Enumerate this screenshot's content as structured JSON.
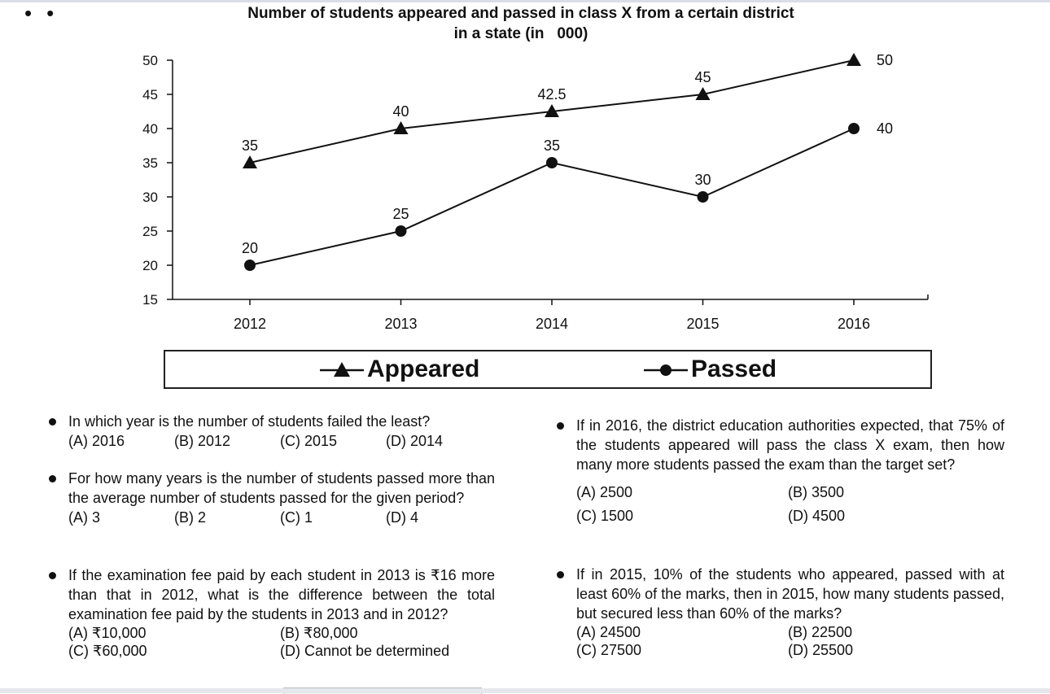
{
  "chart_data": {
    "type": "line",
    "title_line1": "Number of students appeared and passed in class X from a certain district",
    "title_line2": "in a state (in   000)",
    "x": [
      "2012",
      "2013",
      "2014",
      "2015",
      "2016"
    ],
    "ylim": [
      15,
      50
    ],
    "yticks": [
      "15",
      "20",
      "25",
      "30",
      "35",
      "40",
      "45",
      "50"
    ],
    "series": [
      {
        "name": "Appeared",
        "marker": "triangle",
        "values": [
          35,
          40,
          42.5,
          45,
          50
        ],
        "labels": [
          "35",
          "40",
          "42.5",
          "45",
          "50"
        ]
      },
      {
        "name": "Passed",
        "marker": "circle",
        "values": [
          20,
          25,
          35,
          30,
          40
        ],
        "labels": [
          "20",
          "25",
          "35",
          "30",
          "40"
        ]
      }
    ],
    "legend_position": "bottom",
    "color": "#111111"
  },
  "questions": [
    {
      "stem": "In which year is the number of students failed the least?",
      "options": [
        "(A) 2016",
        "(B) 2012",
        "(C) 2015",
        "(D) 2014"
      ]
    },
    {
      "stem": "For how many years is the number of students passed more than the average number of students passed for the given period?",
      "options": [
        "(A) 3",
        "(B) 2",
        "(C) 1",
        "(D) 4"
      ]
    },
    {
      "stem": "If the examination fee paid by each student in 2013 is ₹16 more than that in 2012, what is the difference between the total examination fee paid by the students in 2013 and in 2012?",
      "options": [
        "(A) ₹10,000",
        "(B) ₹80,000",
        "(C) ₹60,000",
        "(D) Cannot be determined"
      ]
    },
    {
      "stem": "If in 2016, the district education authorities expected, that 75% of the students appeared will pass the class X exam, then how many more students passed the exam than the target set?",
      "options": [
        "(A) 2500",
        "(B) 3500",
        "(C) 1500",
        "(D) 4500"
      ]
    },
    {
      "stem": "If in 2015, 10% of the students who appeared, passed with at least 60% of the marks, then in 2015, how many students passed, but secured less than 60% of the marks?",
      "options": [
        "(A) 24500",
        "(B) 22500",
        "(C) 27500",
        "(D) 25500"
      ]
    }
  ]
}
